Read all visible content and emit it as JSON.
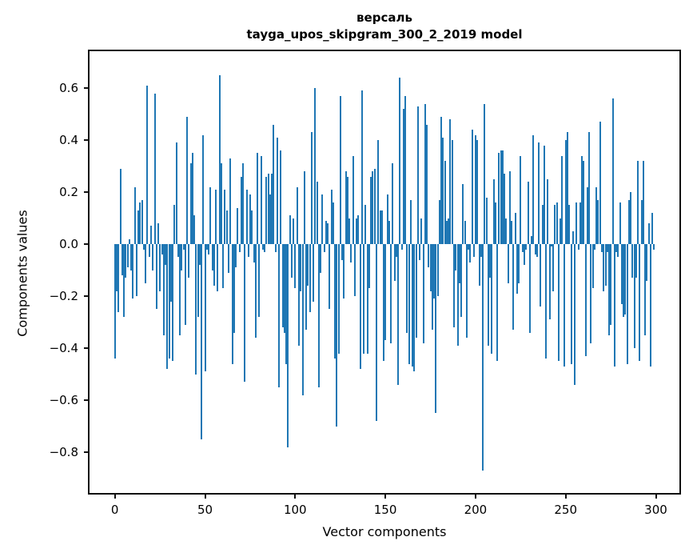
{
  "figure": {
    "title_line1": "версаль",
    "title_line2": "tayga_upos_skipgram_300_2_2019 model",
    "xlabel": "Vector components",
    "ylabel": "Components values"
  },
  "chart_data": {
    "type": "bar",
    "title": "версаль",
    "subtitle": "tayga_upos_skipgram_300_2_2019 model",
    "xlabel": "Vector components",
    "ylabel": "Components values",
    "legend": "none",
    "grid": false,
    "bar_color": "#1f77b4",
    "xlim": [
      -14.95,
      313.95
    ],
    "ylim": [
      -0.963,
      0.748
    ],
    "x_tick_values": [
      0,
      50,
      100,
      150,
      200,
      250,
      300
    ],
    "x_tick_labels": [
      "0",
      "50",
      "100",
      "150",
      "200",
      "250",
      "300"
    ],
    "y_tick_values": [
      0.6,
      0.4,
      0.2,
      0.0,
      -0.2,
      -0.4,
      -0.6,
      -0.8
    ],
    "y_tick_labels": [
      "0.6",
      "0.4",
      "0.2",
      "0.0",
      "−0.2",
      "−0.4",
      "−0.6",
      "−0.8"
    ],
    "x": "index 0..299",
    "values": [
      -0.44,
      -0.18,
      -0.26,
      0.29,
      -0.12,
      -0.28,
      -0.13,
      -0.09,
      0.02,
      -0.1,
      -0.21,
      0.22,
      -0.2,
      0.13,
      0.16,
      0.17,
      -0.02,
      -0.15,
      0.61,
      -0.05,
      0.07,
      -0.1,
      0.58,
      -0.25,
      0.08,
      -0.18,
      -0.04,
      -0.35,
      -0.08,
      -0.48,
      -0.44,
      -0.22,
      -0.45,
      0.15,
      0.39,
      -0.05,
      -0.35,
      -0.1,
      -0.02,
      -0.31,
      0.49,
      -0.13,
      0.31,
      0.35,
      0.11,
      -0.5,
      -0.28,
      -0.08,
      -0.75,
      0.42,
      -0.49,
      -0.02,
      -0.04,
      0.22,
      -0.1,
      -0.16,
      0.21,
      -0.18,
      0.65,
      0.31,
      -0.17,
      0.21,
      0.13,
      -0.11,
      0.33,
      -0.46,
      -0.34,
      -0.09,
      0.14,
      -0.03,
      0.26,
      0.31,
      -0.53,
      0.21,
      -0.05,
      0.19,
      0.13,
      -0.07,
      -0.36,
      0.35,
      -0.28,
      0.34,
      -0.02,
      -0.03,
      0.26,
      0.27,
      0.19,
      0.27,
      0.46,
      -0.03,
      0.41,
      -0.55,
      0.36,
      -0.32,
      -0.34,
      -0.46,
      -0.78,
      0.11,
      -0.13,
      0.1,
      -0.17,
      0.22,
      -0.39,
      -0.18,
      -0.58,
      0.28,
      -0.33,
      -0.16,
      -0.26,
      0.43,
      -0.22,
      0.6,
      0.24,
      -0.55,
      -0.11,
      0.19,
      -0.03,
      0.09,
      0.08,
      -0.25,
      0.21,
      0.16,
      -0.44,
      -0.7,
      -0.42,
      0.57,
      -0.06,
      -0.21,
      0.28,
      0.26,
      0.1,
      -0.07,
      0.34,
      -0.2,
      0.1,
      0.11,
      -0.48,
      0.59,
      -0.42,
      0.15,
      -0.42,
      -0.17,
      0.26,
      0.28,
      0.29,
      -0.68,
      0.4,
      0.13,
      0.13,
      -0.45,
      -0.37,
      0.19,
      0.09,
      -0.38,
      0.31,
      -0.14,
      -0.05,
      -0.54,
      0.64,
      -0.02,
      0.52,
      0.57,
      -0.34,
      -0.46,
      0.17,
      -0.47,
      -0.49,
      -0.36,
      0.53,
      -0.06,
      0.1,
      -0.38,
      0.54,
      0.46,
      -0.09,
      -0.18,
      -0.33,
      -0.21,
      -0.65,
      -0.2,
      0.17,
      0.49,
      0.41,
      0.32,
      0.09,
      0.1,
      0.48,
      0.4,
      -0.32,
      -0.1,
      -0.39,
      -0.15,
      -0.28,
      0.23,
      0.09,
      -0.36,
      -0.02,
      -0.07,
      0.44,
      -0.05,
      0.42,
      0.4,
      -0.16,
      -0.05,
      -0.87,
      0.54,
      0.18,
      -0.39,
      -0.13,
      -0.42,
      0.25,
      0.16,
      -0.45,
      0.35,
      0.36,
      0.36,
      0.27,
      0.1,
      -0.15,
      0.28,
      0.09,
      -0.33,
      0.12,
      -0.19,
      -0.15,
      0.34,
      -0.03,
      -0.08,
      -0.02,
      0.24,
      -0.34,
      0.03,
      0.42,
      -0.04,
      -0.05,
      0.39,
      -0.24,
      0.15,
      0.38,
      -0.44,
      0.25,
      -0.29,
      -0.01,
      -0.18,
      0.15,
      0.16,
      -0.45,
      0.1,
      0.34,
      -0.47,
      0.4,
      0.43,
      0.15,
      -0.46,
      0.05,
      -0.54,
      0.16,
      -0.02,
      0.16,
      0.34,
      0.32,
      -0.43,
      0.22,
      0.43,
      -0.38,
      -0.17,
      -0.02,
      0.22,
      0.17,
      0.47,
      -0.03,
      -0.18,
      -0.16,
      -0.03,
      -0.35,
      -0.31,
      0.56,
      -0.47,
      -0.03,
      -0.05,
      0.16,
      -0.23,
      -0.28,
      -0.27,
      -0.46,
      0.17,
      0.2,
      -0.13,
      -0.4,
      -0.13,
      0.32,
      -0.45,
      0.17,
      0.32,
      -0.35,
      -0.14,
      0.08,
      -0.47,
      0.12,
      -0.02
    ]
  }
}
